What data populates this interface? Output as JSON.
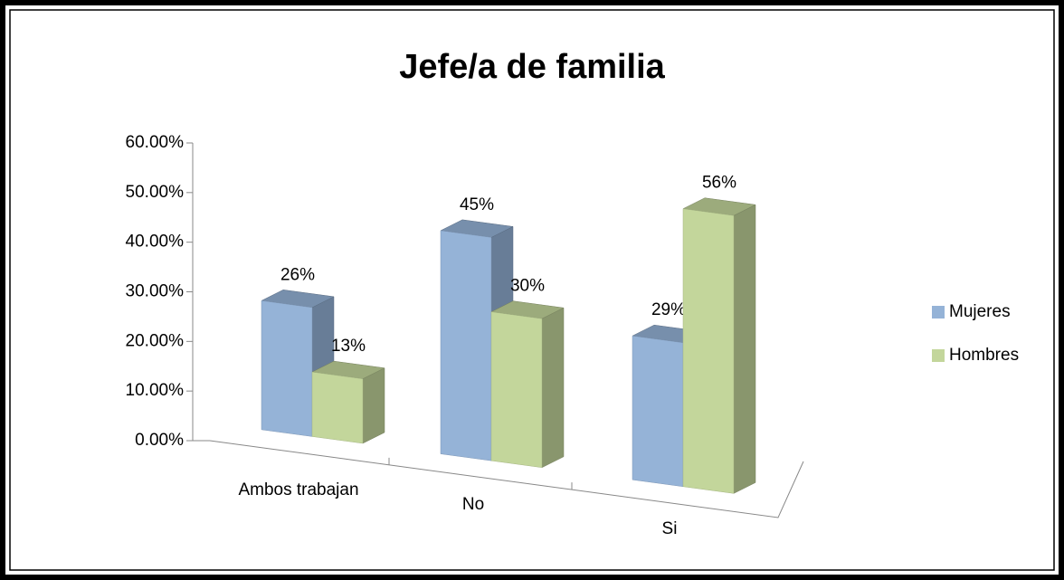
{
  "chart_data": {
    "type": "bar3d",
    "title": "Jefe/a de familia",
    "categories": [
      "Ambos trabajan",
      "No",
      "Si"
    ],
    "series": [
      {
        "name": "Mujeres",
        "color": "#95b3d7",
        "values": [
          26,
          45,
          29
        ],
        "value_labels": [
          "26%",
          "45%",
          "29%"
        ]
      },
      {
        "name": "Hombres",
        "color": "#c3d69b",
        "values": [
          13,
          30,
          56
        ],
        "value_labels": [
          "13%",
          "30%",
          "56%"
        ]
      }
    ],
    "ylim": [
      0,
      60
    ],
    "yticks": [
      {
        "value": 0,
        "label": "0.00%"
      },
      {
        "value": 10,
        "label": "10.00%"
      },
      {
        "value": 20,
        "label": "20.00%"
      },
      {
        "value": 30,
        "label": "30.00%"
      },
      {
        "value": 40,
        "label": "40.00%"
      },
      {
        "value": 50,
        "label": "50.00%"
      },
      {
        "value": 60,
        "label": "60.00%"
      }
    ],
    "legend": "right"
  }
}
